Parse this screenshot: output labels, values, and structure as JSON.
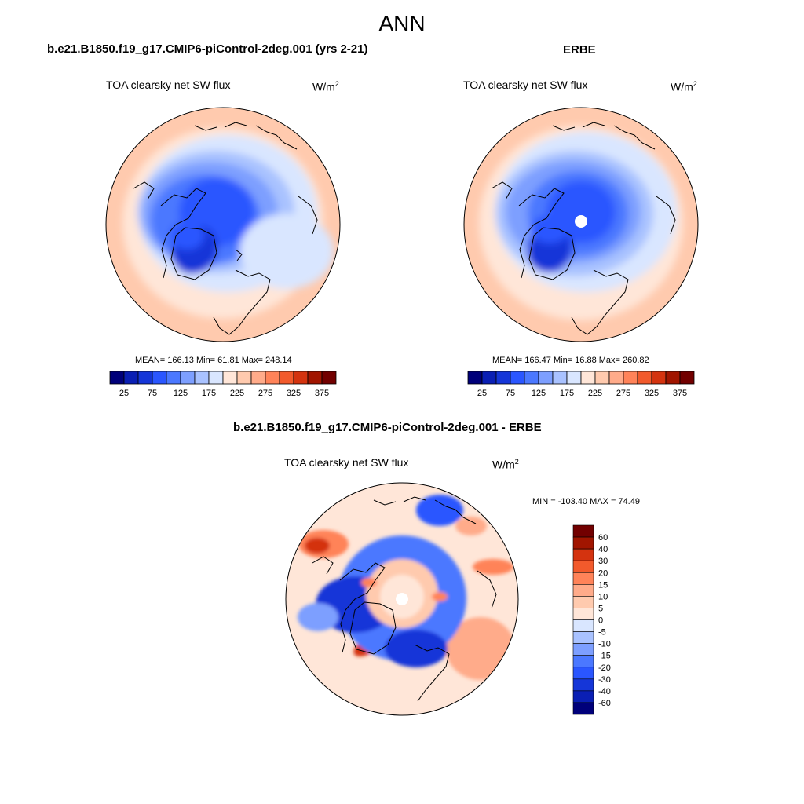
{
  "page_title": "ANN",
  "panels": [
    {
      "title": "b.e21.B1850.f19_g17.CMIP6-piControl-2deg.001 (yrs 2-21)",
      "field": "TOA clearsky net SW flux",
      "units_base": "W/m",
      "units_exp": "2",
      "stats": "MEAN= 166.13  Min=  61.81  Max= 248.14"
    },
    {
      "title": "ERBE",
      "field": "TOA clearsky net SW flux",
      "units_base": "W/m",
      "units_exp": "2",
      "stats": "MEAN= 166.47  Min=  16.88  Max= 260.82"
    },
    {
      "title": "b.e21.B1850.f19_g17.CMIP6-piControl-2deg.001 - ERBE",
      "field": "TOA clearsky net SW flux",
      "units_base": "W/m",
      "units_exp": "2",
      "stats": "MIN = -103.40 MAX =  74.49"
    }
  ],
  "chart_data": [
    {
      "type": "heatmap",
      "projection": "north polar stereographic",
      "title": "b.e21.B1850.f19_g17.CMIP6-piControl-2deg.001 (yrs 2-21)",
      "variable": "TOA clearsky net SW flux",
      "units": "W/m2",
      "mean": 166.13,
      "min": 61.81,
      "max": 248.14,
      "colorbar_tick_labels": [
        "25",
        "75",
        "125",
        "175",
        "225",
        "275",
        "325",
        "375"
      ],
      "colorbar_orientation": "horizontal"
    },
    {
      "type": "heatmap",
      "projection": "north polar stereographic",
      "title": "ERBE",
      "variable": "TOA clearsky net SW flux",
      "units": "W/m2",
      "mean": 166.47,
      "min": 16.88,
      "max": 260.82,
      "colorbar_tick_labels": [
        "25",
        "75",
        "125",
        "175",
        "225",
        "275",
        "325",
        "375"
      ],
      "colorbar_orientation": "horizontal"
    },
    {
      "type": "heatmap",
      "projection": "north polar stereographic",
      "title": "b.e21.B1850.f19_g17.CMIP6-piControl-2deg.001 - ERBE",
      "variable": "TOA clearsky net SW flux",
      "units": "W/m2",
      "min": -103.4,
      "max": 74.49,
      "colorbar_tick_labels": [
        "60",
        "40",
        "30",
        "20",
        "15",
        "10",
        "5",
        "0",
        "-5",
        "-10",
        "-15",
        "-20",
        "-30",
        "-40",
        "-60"
      ],
      "colorbar_orientation": "vertical"
    }
  ],
  "colors": {
    "seq_scale": [
      "#00007a",
      "#0a1fb4",
      "#1536d8",
      "#2a56ff",
      "#4b78ff",
      "#7d9fff",
      "#a9c2ff",
      "#d9e6ff",
      "#ffe6d8",
      "#ffcaae",
      "#ffab8a",
      "#ff8359",
      "#f25a2c",
      "#d4330f",
      "#a11500",
      "#720000"
    ],
    "diff_scale": [
      "#720000",
      "#a11500",
      "#d4330f",
      "#f25a2c",
      "#ff8359",
      "#ffab8a",
      "#ffcaae",
      "#ffe6d8",
      "#d9e6ff",
      "#a9c2ff",
      "#7d9fff",
      "#4b78ff",
      "#2a56ff",
      "#1536d8",
      "#0a1fb4",
      "#00007a"
    ]
  }
}
